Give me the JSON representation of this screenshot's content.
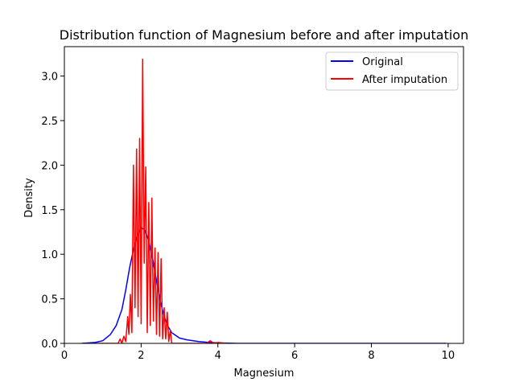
{
  "chart_data": {
    "type": "line",
    "title": "Distribution function of Magnesium before and after imputation",
    "xlabel": "Magnesium",
    "ylabel": "Density",
    "xlim": [
      0,
      10.4
    ],
    "ylim": [
      0,
      3.33
    ],
    "xticks": [
      0,
      2,
      4,
      6,
      8,
      10
    ],
    "yticks": [
      0.0,
      0.5,
      1.0,
      1.5,
      2.0,
      2.5,
      3.0
    ],
    "xtick_labels": [
      "0",
      "2",
      "4",
      "6",
      "8",
      "10"
    ],
    "ytick_labels": [
      "0.0",
      "0.5",
      "1.0",
      "1.5",
      "2.0",
      "2.5",
      "3.0"
    ],
    "grid": false,
    "legend_position": "top-right",
    "series": [
      {
        "name": "Original",
        "color": "#0000ff",
        "x": [
          0.45,
          0.8,
          1.0,
          1.2,
          1.35,
          1.5,
          1.6,
          1.7,
          1.8,
          1.9,
          2.0,
          2.1,
          2.2,
          2.3,
          2.4,
          2.5,
          2.6,
          2.7,
          2.8,
          3.0,
          3.2,
          3.5,
          3.8,
          4.0,
          4.5,
          5.0,
          6.0,
          7.0,
          8.0,
          9.0,
          9.95
        ],
        "y": [
          0.0,
          0.01,
          0.03,
          0.1,
          0.2,
          0.38,
          0.6,
          0.85,
          1.05,
          1.2,
          1.3,
          1.27,
          1.15,
          0.95,
          0.7,
          0.47,
          0.3,
          0.19,
          0.12,
          0.06,
          0.04,
          0.02,
          0.01,
          0.005,
          0.0,
          0.0,
          0.0,
          0.0,
          0.0,
          0.0,
          0.0
        ]
      },
      {
        "name": "After imputation",
        "color": "#ff0000",
        "x": [
          0.85,
          1.2,
          1.4,
          1.45,
          1.5,
          1.55,
          1.6,
          1.65,
          1.68,
          1.72,
          1.76,
          1.8,
          1.84,
          1.88,
          1.92,
          1.96,
          2.0,
          2.04,
          2.08,
          2.12,
          2.16,
          2.2,
          2.24,
          2.28,
          2.32,
          2.36,
          2.4,
          2.44,
          2.48,
          2.52,
          2.56,
          2.6,
          2.64,
          2.68,
          2.72,
          2.76,
          2.8,
          3.0,
          3.2,
          3.5,
          3.7,
          3.8,
          3.9,
          4.0,
          4.2
        ],
        "y": [
          0.0,
          0.0,
          0.0,
          0.05,
          0.0,
          0.08,
          0.02,
          0.3,
          0.1,
          0.55,
          0.12,
          2.0,
          0.4,
          2.18,
          0.3,
          2.3,
          0.22,
          3.19,
          0.9,
          1.98,
          0.12,
          1.58,
          0.2,
          1.63,
          0.25,
          1.07,
          0.1,
          1.02,
          0.08,
          0.95,
          0.05,
          0.4,
          0.05,
          0.35,
          0.02,
          0.15,
          0.0,
          0.0,
          0.0,
          0.0,
          0.0,
          0.03,
          0.0,
          0.01,
          0.0
        ]
      }
    ]
  }
}
